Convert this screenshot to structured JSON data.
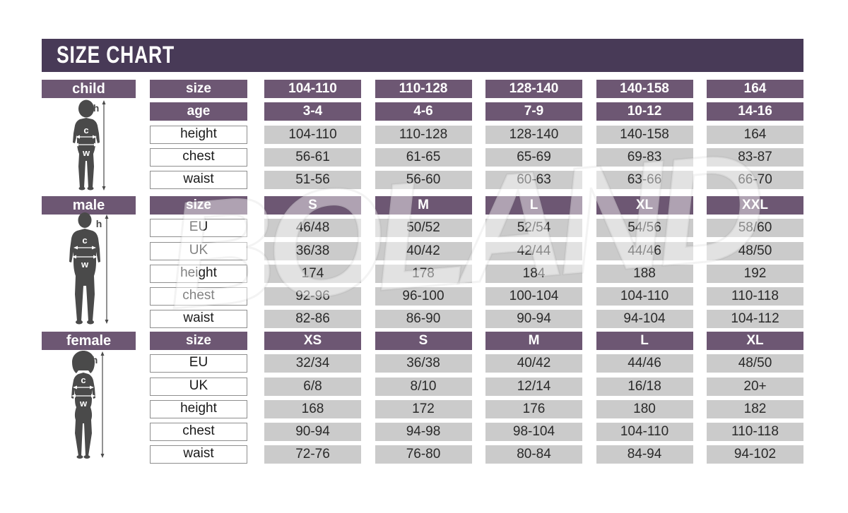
{
  "title": "SIZE CHART",
  "watermark": "BOLAND",
  "colors": {
    "title_bar": "#483a57",
    "header_purple": "#6d5773",
    "value_gray": "#cbcbcb",
    "silhouette": "#4a4a4a"
  },
  "figure_labels": {
    "height": "h",
    "chest": "c",
    "waist": "w"
  },
  "sections": [
    {
      "name": "child",
      "rows": [
        {
          "label": "size",
          "header": true,
          "values": [
            "104-110",
            "110-128",
            "128-140",
            "140-158",
            "164"
          ]
        },
        {
          "label": "age",
          "header": true,
          "values": [
            "3-4",
            "4-6",
            "7-9",
            "10-12",
            "14-16"
          ]
        },
        {
          "label": "height",
          "header": false,
          "values": [
            "104-110",
            "110-128",
            "128-140",
            "140-158",
            "164"
          ]
        },
        {
          "label": "chest",
          "header": false,
          "values": [
            "56-61",
            "61-65",
            "65-69",
            "69-83",
            "83-87"
          ]
        },
        {
          "label": "waist",
          "header": false,
          "values": [
            "51-56",
            "56-60",
            "60-63",
            "63-66",
            "66-70"
          ]
        }
      ]
    },
    {
      "name": "male",
      "rows": [
        {
          "label": "size",
          "header": true,
          "values": [
            "S",
            "M",
            "L",
            "XL",
            "XXL"
          ]
        },
        {
          "label": "EU",
          "header": false,
          "values": [
            "46/48",
            "50/52",
            "52/54",
            "54/56",
            "58/60"
          ]
        },
        {
          "label": "UK",
          "header": false,
          "values": [
            "36/38",
            "40/42",
            "42/44",
            "44/46",
            "48/50"
          ]
        },
        {
          "label": "height",
          "header": false,
          "values": [
            "174",
            "178",
            "184",
            "188",
            "192"
          ]
        },
        {
          "label": "chest",
          "header": false,
          "values": [
            "92-96",
            "96-100",
            "100-104",
            "104-110",
            "110-118"
          ]
        },
        {
          "label": "waist",
          "header": false,
          "values": [
            "82-86",
            "86-90",
            "90-94",
            "94-104",
            "104-112"
          ]
        }
      ]
    },
    {
      "name": "female",
      "rows": [
        {
          "label": "size",
          "header": true,
          "values": [
            "XS",
            "S",
            "M",
            "L",
            "XL"
          ]
        },
        {
          "label": "EU",
          "header": false,
          "values": [
            "32/34",
            "36/38",
            "40/42",
            "44/46",
            "48/50"
          ]
        },
        {
          "label": "UK",
          "header": false,
          "values": [
            "6/8",
            "8/10",
            "12/14",
            "16/18",
            "20+"
          ]
        },
        {
          "label": "height",
          "header": false,
          "values": [
            "168",
            "172",
            "176",
            "180",
            "182"
          ]
        },
        {
          "label": "chest",
          "header": false,
          "values": [
            "90-94",
            "94-98",
            "98-104",
            "104-110",
            "110-118"
          ]
        },
        {
          "label": "waist",
          "header": false,
          "values": [
            "72-76",
            "76-80",
            "80-84",
            "84-94",
            "94-102"
          ]
        }
      ]
    }
  ]
}
